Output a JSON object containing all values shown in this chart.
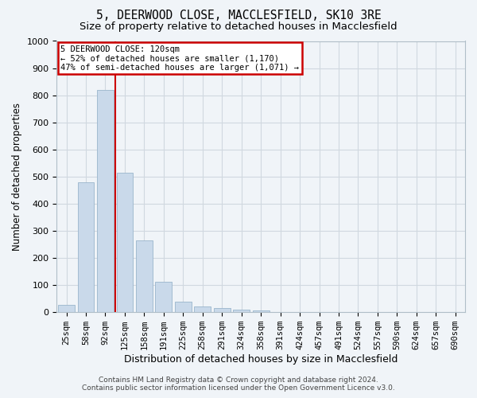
{
  "title1": "5, DEERWOOD CLOSE, MACCLESFIELD, SK10 3RE",
  "title2": "Size of property relative to detached houses in Macclesfield",
  "xlabel": "Distribution of detached houses by size in Macclesfield",
  "ylabel": "Number of detached properties",
  "categories": [
    "25sqm",
    "58sqm",
    "92sqm",
    "125sqm",
    "158sqm",
    "191sqm",
    "225sqm",
    "258sqm",
    "291sqm",
    "324sqm",
    "358sqm",
    "391sqm",
    "424sqm",
    "457sqm",
    "491sqm",
    "524sqm",
    "557sqm",
    "590sqm",
    "624sqm",
    "657sqm",
    "690sqm"
  ],
  "values": [
    27,
    478,
    820,
    515,
    263,
    110,
    37,
    20,
    13,
    7,
    4,
    0,
    0,
    0,
    0,
    0,
    0,
    0,
    0,
    0,
    0
  ],
  "bar_color": "#c9d9ea",
  "bar_edge_color": "#9ab5cc",
  "vline_x": 3.0,
  "vline_color": "#cc0000",
  "annotation_text": "5 DEERWOOD CLOSE: 120sqm\n← 52% of detached houses are smaller (1,170)\n47% of semi-detached houses are larger (1,071) →",
  "annotation_box_color": "#cc0000",
  "ylim": [
    0,
    1000
  ],
  "yticks": [
    0,
    100,
    200,
    300,
    400,
    500,
    600,
    700,
    800,
    900,
    1000
  ],
  "fig_bg_color": "#f0f4f8",
  "plot_bg_color": "#f0f4f8",
  "grid_color": "#d0d8e0",
  "footer1": "Contains HM Land Registry data © Crown copyright and database right 2024.",
  "footer2": "Contains public sector information licensed under the Open Government Licence v3.0.",
  "title_fontsize": 10.5,
  "subtitle_fontsize": 9.5,
  "tick_fontsize": 7.5,
  "ylabel_fontsize": 8.5,
  "xlabel_fontsize": 9,
  "footer_fontsize": 6.5,
  "bar_width": 0.85
}
